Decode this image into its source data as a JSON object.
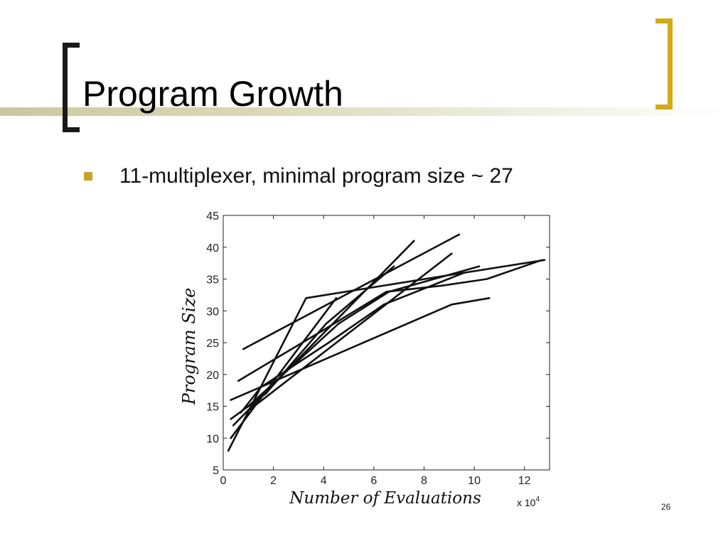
{
  "slide": {
    "title": "Program Growth",
    "bullet": "11-multiplexer, minimal program size ~ 27",
    "page_number": "26"
  },
  "colors": {
    "accent": "#d4a91a",
    "bullet": "#c9a22b",
    "title_bar": "#c8c8a0"
  },
  "chart_data": {
    "type": "line",
    "title": "",
    "xlabel": "Number of Evaluations",
    "ylabel": "Program Size",
    "x_multiplier_label": "x 10",
    "x_multiplier_exp": "4",
    "xlim": [
      0,
      13
    ],
    "ylim": [
      5,
      45
    ],
    "x_ticks": [
      "0",
      "2",
      "4",
      "6",
      "8",
      "10",
      "12"
    ],
    "y_ticks": [
      "5",
      "10",
      "15",
      "20",
      "25",
      "30",
      "35",
      "40",
      "45"
    ],
    "grid": false,
    "series": [
      {
        "x": [
          0.2,
          3.3,
          9.6
        ],
        "y": [
          8,
          32,
          36
        ]
      },
      {
        "x": [
          0.3,
          4.5
        ],
        "y": [
          10,
          32
        ]
      },
      {
        "x": [
          0.4,
          7.6
        ],
        "y": [
          12,
          41
        ]
      },
      {
        "x": [
          0.7,
          1.5,
          4.2,
          6.4,
          9.6,
          12.8
        ],
        "y": [
          14,
          18,
          25,
          31,
          36,
          38
        ]
      },
      {
        "x": [
          0.8,
          9.4
        ],
        "y": [
          24,
          42
        ]
      },
      {
        "x": [
          0.3,
          9.1,
          10.6
        ],
        "y": [
          16,
          31,
          32
        ]
      },
      {
        "x": [
          0.3,
          1.7,
          4.1,
          6.8
        ],
        "y": [
          13,
          17,
          28,
          37
        ]
      },
      {
        "x": [
          0.6,
          4.0,
          6.5,
          8.8,
          10.5,
          12.7
        ],
        "y": [
          19,
          27,
          33,
          34,
          35,
          38
        ]
      },
      {
        "x": [
          0.9,
          9.1
        ],
        "y": [
          14,
          39
        ]
      },
      {
        "x": [
          1.0,
          4.6,
          6.6,
          10.2
        ],
        "y": [
          15,
          28,
          33,
          37
        ]
      }
    ]
  }
}
